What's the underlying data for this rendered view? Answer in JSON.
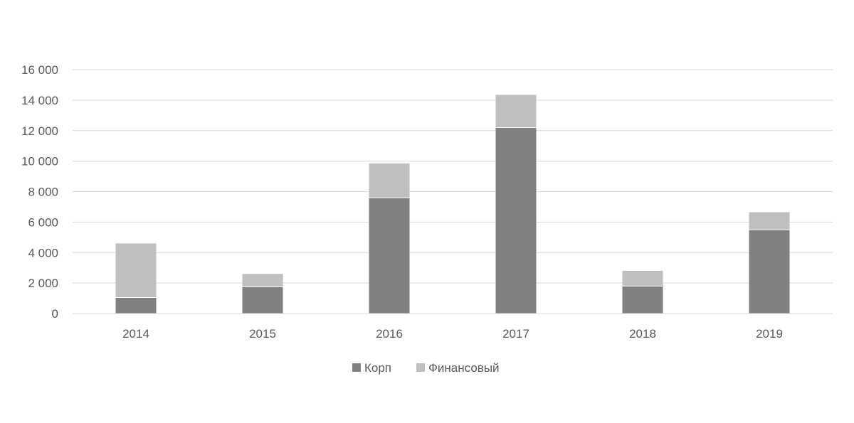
{
  "chart_data": {
    "type": "bar",
    "stacked": true,
    "categories": [
      "2014",
      "2015",
      "2016",
      "2017",
      "2018",
      "2019"
    ],
    "series": [
      {
        "name": "Корп",
        "color": "#808080",
        "values": [
          1050,
          1750,
          7600,
          12200,
          1800,
          5500
        ]
      },
      {
        "name": "Финансовый",
        "color": "#bfbfbf",
        "values": [
          3550,
          850,
          2250,
          2150,
          1000,
          1150
        ]
      }
    ],
    "ylim": [
      0,
      16000
    ],
    "yticks": [
      0,
      2000,
      4000,
      6000,
      8000,
      10000,
      12000,
      14000,
      16000
    ],
    "ytick_labels": [
      "0",
      "2 000",
      "4 000",
      "6 000",
      "8 000",
      "10 000",
      "12 000",
      "14 000",
      "16 000"
    ],
    "grid": true,
    "legend_position": "bottom-center",
    "title": "",
    "xlabel": "",
    "ylabel": ""
  }
}
